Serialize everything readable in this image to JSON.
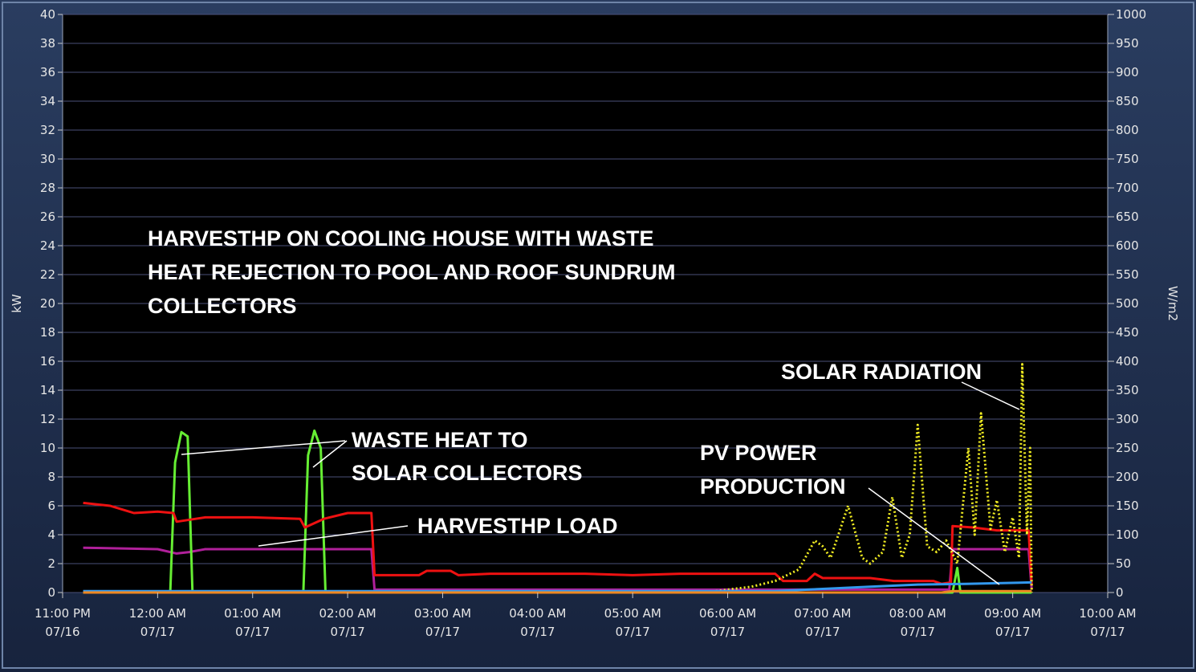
{
  "chart_data": {
    "type": "line",
    "ylabel": "kW",
    "y2label": "W/m2",
    "xlim": [
      "07/16 23:00",
      "07/17 10:00"
    ],
    "xticks": [
      {
        "value": "07/16 23:00",
        "label": "11:00 PM\n07/16"
      },
      {
        "value": "07/17 00:00",
        "label": "12:00 AM\n07/17"
      },
      {
        "value": "07/17 01:00",
        "label": "01:00 AM\n07/17"
      },
      {
        "value": "07/17 02:00",
        "label": "02:00 AM\n07/17"
      },
      {
        "value": "07/17 03:00",
        "label": "03:00 AM\n07/17"
      },
      {
        "value": "07/17 04:00",
        "label": "04:00 AM\n07/17"
      },
      {
        "value": "07/17 05:00",
        "label": "05:00 AM\n07/17"
      },
      {
        "value": "07/17 06:00",
        "label": "06:00 AM\n07/17"
      },
      {
        "value": "07/17 07:00",
        "label": "07:00 AM\n07/17"
      },
      {
        "value": "07/17 08:00",
        "label": "08:00 AM\n07/17"
      },
      {
        "value": "07/17 09:00",
        "label": "09:00 AM\n07/17"
      },
      {
        "value": "07/17 10:00",
        "label": "10:00 AM\n07/17"
      }
    ],
    "ylim": [
      0,
      40
    ],
    "yticks": [
      0,
      2,
      4,
      6,
      8,
      10,
      12,
      14,
      16,
      18,
      20,
      22,
      24,
      26,
      28,
      30,
      32,
      34,
      36,
      38,
      40
    ],
    "y2lim": [
      0,
      1000
    ],
    "y2ticks": [
      0,
      50,
      100,
      150,
      200,
      250,
      300,
      350,
      400,
      450,
      500,
      550,
      600,
      650,
      700,
      750,
      800,
      850,
      900,
      950,
      1000
    ],
    "grid": true,
    "annotations": [
      {
        "lines": [
          "HARVESTHP ON COOLING HOUSE WITH WASTE",
          "HEAT REJECTION TO POOL AND ROOF SUNDRUM",
          "COLLECTORS"
        ]
      },
      {
        "lines": [
          "WASTE HEAT TO",
          "SOLAR COLLECTORS"
        ]
      },
      {
        "lines": [
          "HARVESTHP LOAD"
        ]
      },
      {
        "lines": [
          "SOLAR RADIATION"
        ]
      },
      {
        "lines": [
          "PV POWER",
          "PRODUCTION"
        ]
      }
    ],
    "series": [
      {
        "color": "#b0209a",
        "x": [
          "07/16 23:13",
          "07/17 00:00",
          "07/17 00:12",
          "07/17 00:20",
          "07/17 00:30",
          "07/17 01:00",
          "07/17 01:30",
          "07/17 01:40",
          "07/17 02:15",
          "07/17 02:17",
          "07/17 08:20",
          "07/17 08:22",
          "07/17 09:10",
          "07/17 09:12"
        ],
        "values": [
          3.1,
          3.0,
          2.7,
          2.8,
          3.0,
          3.0,
          3.0,
          3.0,
          3.0,
          0.2,
          0.2,
          3.0,
          3.0,
          0.2
        ]
      },
      {
        "color": "#66ee33",
        "x": [
          "07/16 23:13",
          "07/17 00:08",
          "07/17 00:11",
          "07/17 00:15",
          "07/17 00:19",
          "07/17 00:22",
          "07/17 01:32",
          "07/17 01:35",
          "07/17 01:39",
          "07/17 01:43",
          "07/17 01:46",
          "07/17 08:22",
          "07/17 08:25",
          "07/17 08:27",
          "07/17 09:12"
        ],
        "values": [
          0,
          0,
          9,
          11.1,
          10.8,
          0,
          0,
          9.5,
          11.2,
          10,
          0,
          0,
          1.7,
          0,
          0
        ]
      },
      {
        "color": "#ee1111",
        "x": [
          "07/16 23:13",
          "07/16 23:30",
          "07/16 23:45",
          "07/17 00:00",
          "07/17 00:10",
          "07/17 00:12",
          "07/17 00:30",
          "07/17 01:00",
          "07/17 01:30",
          "07/17 01:33",
          "07/17 01:45",
          "07/17 02:00",
          "07/17 02:15",
          "07/17 02:17",
          "07/17 02:45",
          "07/17 02:50",
          "07/17 03:05",
          "07/17 03:10",
          "07/17 03:30",
          "07/17 04:00",
          "07/17 04:30",
          "07/17 05:00",
          "07/17 05:30",
          "07/17 06:00",
          "07/17 06:30",
          "07/17 06:35",
          "07/17 06:50",
          "07/17 06:55",
          "07/17 07:00",
          "07/17 07:30",
          "07/17 07:45",
          "07/17 08:10",
          "07/17 08:15",
          "07/17 08:21",
          "07/17 08:22",
          "07/17 08:35",
          "07/17 08:50",
          "07/17 09:10",
          "07/17 09:12"
        ],
        "values": [
          6.2,
          6.0,
          5.5,
          5.6,
          5.5,
          4.9,
          5.2,
          5.2,
          5.1,
          4.5,
          5.1,
          5.5,
          5.5,
          1.2,
          1.2,
          1.5,
          1.5,
          1.2,
          1.3,
          1.3,
          1.3,
          1.2,
          1.3,
          1.3,
          1.3,
          0.8,
          0.8,
          1.3,
          1.0,
          1.0,
          0.8,
          0.8,
          0.6,
          0.7,
          4.6,
          4.5,
          4.3,
          4.3,
          0.5
        ]
      },
      {
        "color": "#f2ee22",
        "axis": "y2",
        "style": "dotted",
        "x": [
          "07/17 05:45",
          "07/17 06:00",
          "07/17 06:15",
          "07/17 06:30",
          "07/17 06:45",
          "07/17 06:55",
          "07/17 07:00",
          "07/17 07:05",
          "07/17 07:16",
          "07/17 07:25",
          "07/17 07:30",
          "07/17 07:38",
          "07/17 07:44",
          "07/17 07:50",
          "07/17 07:55",
          "07/17 08:00",
          "07/17 08:06",
          "07/17 08:12",
          "07/17 08:18",
          "07/17 08:25",
          "07/17 08:32",
          "07/17 08:36",
          "07/17 08:40",
          "07/17 08:46",
          "07/17 08:50",
          "07/17 08:55",
          "07/17 09:00",
          "07/17 09:04",
          "07/17 09:06",
          "07/17 09:09",
          "07/17 09:11",
          "07/17 09:12"
        ],
        "values": [
          0,
          5,
          10,
          20,
          40,
          90,
          80,
          60,
          150,
          60,
          50,
          70,
          165,
          60,
          100,
          290,
          80,
          70,
          90,
          50,
          250,
          100,
          310,
          110,
          160,
          70,
          130,
          60,
          395,
          100,
          250,
          0
        ]
      },
      {
        "color": "#3399ee",
        "x": [
          "07/16 23:13",
          "07/17 06:30",
          "07/17 07:00",
          "07/17 07:30",
          "07/17 08:00",
          "07/17 08:30",
          "07/17 09:12"
        ],
        "values": [
          0.1,
          0.1,
          0.25,
          0.4,
          0.55,
          0.6,
          0.7
        ]
      },
      {
        "color": "#ee8822",
        "x": [
          "07/16 23:13",
          "07/17 08:15",
          "07/17 08:22",
          "07/17 09:12"
        ],
        "values": [
          0,
          0,
          0.1,
          0.1
        ]
      }
    ]
  }
}
